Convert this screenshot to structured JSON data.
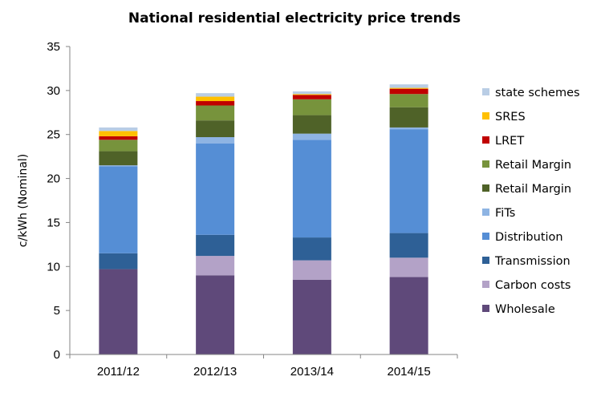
{
  "chart_data": {
    "type": "bar",
    "stacked": true,
    "title": "National residential electricity price trends",
    "xlabel": "",
    "ylabel": "c/kWh (Nominal)",
    "ylim": [
      0,
      35
    ],
    "yticks": [
      "0",
      "5",
      "10",
      "15",
      "20",
      "25",
      "30",
      "35"
    ],
    "grid": false,
    "legend_position": "right",
    "categories": [
      "2011/12",
      "2012/13",
      "2013/14",
      "2014/15"
    ],
    "series": [
      {
        "name": "Wholesale",
        "color": "#5f497a",
        "values": [
          9.7,
          9.0,
          8.5,
          8.8
        ]
      },
      {
        "name": "Carbon costs",
        "color": "#b3a2c7",
        "values": [
          0.0,
          2.2,
          2.2,
          2.2
        ]
      },
      {
        "name": "Transmission",
        "color": "#2e6096",
        "values": [
          1.8,
          2.4,
          2.6,
          2.8
        ]
      },
      {
        "name": "Distribution",
        "color": "#558ed5",
        "values": [
          9.9,
          10.4,
          11.1,
          11.8
        ]
      },
      {
        "name": "FiTs",
        "color": "#8eb4e3",
        "values": [
          0.1,
          0.7,
          0.7,
          0.2
        ]
      },
      {
        "name": "Retail Margin",
        "color": "#4f6228",
        "values": [
          1.6,
          1.9,
          2.1,
          2.3
        ]
      },
      {
        "name": "Retail Margin",
        "color": "#77933c",
        "values": [
          1.3,
          1.7,
          1.8,
          1.5
        ]
      },
      {
        "name": "LRET",
        "color": "#c00000",
        "values": [
          0.4,
          0.5,
          0.5,
          0.6
        ]
      },
      {
        "name": "SRES",
        "color": "#ffc000",
        "values": [
          0.6,
          0.5,
          0.1,
          0.1
        ]
      },
      {
        "name": "state schemes",
        "color": "#b9cde5",
        "values": [
          0.4,
          0.4,
          0.3,
          0.4
        ]
      }
    ]
  }
}
